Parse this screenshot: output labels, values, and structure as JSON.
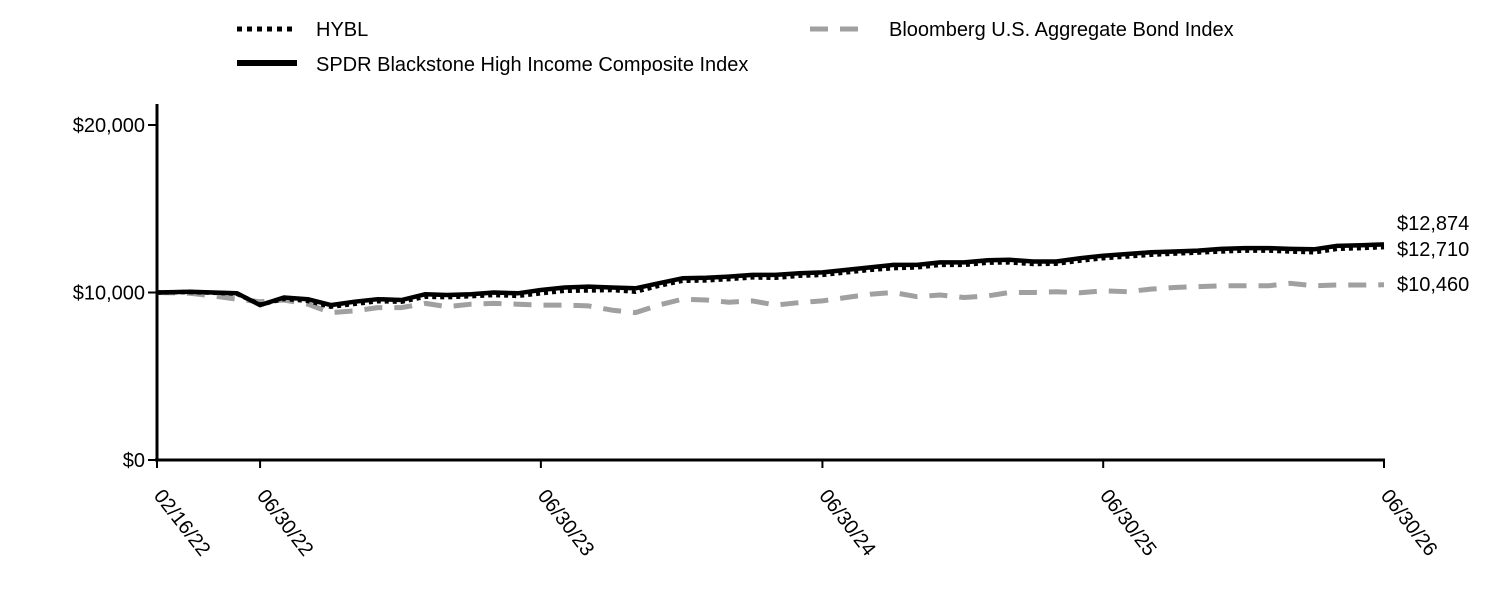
{
  "chart_data": {
    "type": "line",
    "xlim": [
      "02/16/22",
      "06/30/26"
    ],
    "x_ticks": [
      "02/16/22",
      "06/30/22",
      "06/30/23",
      "06/30/24",
      "06/30/25",
      "06/30/26"
    ],
    "y_ticks": [
      {
        "value": 0,
        "label": "$0"
      },
      {
        "value": 10000,
        "label": "$10,000"
      },
      {
        "value": 20000,
        "label": "$20,000"
      }
    ],
    "ylim": [
      0,
      20000
    ],
    "grid": false,
    "legend_position": "top",
    "series": [
      {
        "name": "HYBL",
        "style": "dotted",
        "color": "#000000",
        "end_label": "$12,710",
        "points": [
          [
            "2022-02-16",
            10000
          ],
          [
            "2022-03-31",
            10030
          ],
          [
            "2022-04-30",
            9990
          ],
          [
            "2022-05-31",
            9920
          ],
          [
            "2022-06-30",
            9280
          ],
          [
            "2022-07-31",
            9620
          ],
          [
            "2022-08-31",
            9500
          ],
          [
            "2022-09-30",
            9150
          ],
          [
            "2022-10-31",
            9320
          ],
          [
            "2022-11-30",
            9480
          ],
          [
            "2022-12-31",
            9450
          ],
          [
            "2023-01-31",
            9750
          ],
          [
            "2023-02-28",
            9720
          ],
          [
            "2023-03-31",
            9780
          ],
          [
            "2023-04-30",
            9850
          ],
          [
            "2023-05-31",
            9800
          ],
          [
            "2023-06-30",
            9950
          ],
          [
            "2023-07-31",
            10100
          ],
          [
            "2023-08-31",
            10120
          ],
          [
            "2023-09-30",
            10150
          ],
          [
            "2023-10-31",
            10050
          ],
          [
            "2023-11-30",
            10400
          ],
          [
            "2023-12-31",
            10700
          ],
          [
            "2024-01-31",
            10720
          ],
          [
            "2024-02-29",
            10800
          ],
          [
            "2024-03-31",
            10900
          ],
          [
            "2024-04-30",
            10880
          ],
          [
            "2024-05-31",
            11000
          ],
          [
            "2024-06-30",
            11050
          ],
          [
            "2024-07-31",
            11200
          ],
          [
            "2024-08-31",
            11350
          ],
          [
            "2024-09-30",
            11450
          ],
          [
            "2024-10-31",
            11500
          ],
          [
            "2024-11-30",
            11650
          ],
          [
            "2024-12-31",
            11650
          ],
          [
            "2025-01-31",
            11780
          ],
          [
            "2025-02-28",
            11800
          ],
          [
            "2025-03-31",
            11700
          ],
          [
            "2025-04-30",
            11720
          ],
          [
            "2025-05-31",
            11900
          ],
          [
            "2025-06-30",
            12050
          ],
          [
            "2025-07-31",
            12150
          ],
          [
            "2025-08-31",
            12250
          ],
          [
            "2025-09-30",
            12320
          ],
          [
            "2025-10-31",
            12380
          ],
          [
            "2025-11-30",
            12450
          ],
          [
            "2025-12-31",
            12500
          ],
          [
            "2026-01-31",
            12500
          ],
          [
            "2026-02-28",
            12450
          ],
          [
            "2026-03-31",
            12400
          ],
          [
            "2026-04-30",
            12600
          ],
          [
            "2026-05-31",
            12650
          ],
          [
            "2026-06-30",
            12710
          ]
        ]
      },
      {
        "name": "SPDR Blackstone High Income Composite Index",
        "style": "solid",
        "color": "#000000",
        "end_label": "$12,874",
        "points": [
          [
            "2022-02-16",
            10000
          ],
          [
            "2022-03-31",
            10050
          ],
          [
            "2022-04-30",
            10000
          ],
          [
            "2022-05-31",
            9950
          ],
          [
            "2022-06-30",
            9250
          ],
          [
            "2022-07-31",
            9700
          ],
          [
            "2022-08-31",
            9600
          ],
          [
            "2022-09-30",
            9250
          ],
          [
            "2022-10-31",
            9450
          ],
          [
            "2022-11-30",
            9600
          ],
          [
            "2022-12-31",
            9550
          ],
          [
            "2023-01-31",
            9900
          ],
          [
            "2023-02-28",
            9850
          ],
          [
            "2023-03-31",
            9900
          ],
          [
            "2023-04-30",
            10000
          ],
          [
            "2023-05-31",
            9950
          ],
          [
            "2023-06-30",
            10150
          ],
          [
            "2023-07-31",
            10300
          ],
          [
            "2023-08-31",
            10350
          ],
          [
            "2023-09-30",
            10300
          ],
          [
            "2023-10-31",
            10250
          ],
          [
            "2023-11-30",
            10550
          ],
          [
            "2023-12-31",
            10850
          ],
          [
            "2024-01-31",
            10880
          ],
          [
            "2024-02-29",
            10950
          ],
          [
            "2024-03-31",
            11050
          ],
          [
            "2024-04-30",
            11050
          ],
          [
            "2024-05-31",
            11150
          ],
          [
            "2024-06-30",
            11200
          ],
          [
            "2024-07-31",
            11350
          ],
          [
            "2024-08-31",
            11500
          ],
          [
            "2024-09-30",
            11650
          ],
          [
            "2024-10-31",
            11650
          ],
          [
            "2024-11-30",
            11800
          ],
          [
            "2024-12-31",
            11800
          ],
          [
            "2025-01-31",
            11920
          ],
          [
            "2025-02-28",
            11950
          ],
          [
            "2025-03-31",
            11850
          ],
          [
            "2025-04-30",
            11850
          ],
          [
            "2025-05-31",
            12050
          ],
          [
            "2025-06-30",
            12200
          ],
          [
            "2025-07-31",
            12300
          ],
          [
            "2025-08-31",
            12400
          ],
          [
            "2025-09-30",
            12450
          ],
          [
            "2025-10-31",
            12500
          ],
          [
            "2025-11-30",
            12600
          ],
          [
            "2025-12-31",
            12650
          ],
          [
            "2026-01-31",
            12650
          ],
          [
            "2026-02-28",
            12600
          ],
          [
            "2026-03-31",
            12580
          ],
          [
            "2026-04-30",
            12780
          ],
          [
            "2026-05-31",
            12820
          ],
          [
            "2026-06-30",
            12874
          ]
        ]
      },
      {
        "name": "Bloomberg U.S. Aggregate Bond Index",
        "style": "dashed",
        "color": "#a09fa1",
        "end_label": "$10,460",
        "points": [
          [
            "2022-02-16",
            10000
          ],
          [
            "2022-03-31",
            9950
          ],
          [
            "2022-04-30",
            9800
          ],
          [
            "2022-05-31",
            9600
          ],
          [
            "2022-06-30",
            9450
          ],
          [
            "2022-07-31",
            9550
          ],
          [
            "2022-08-31",
            9300
          ],
          [
            "2022-09-30",
            8800
          ],
          [
            "2022-10-31",
            8900
          ],
          [
            "2022-11-30",
            9100
          ],
          [
            "2022-12-31",
            9100
          ],
          [
            "2023-01-31",
            9350
          ],
          [
            "2023-02-28",
            9150
          ],
          [
            "2023-03-31",
            9300
          ],
          [
            "2023-04-30",
            9350
          ],
          [
            "2023-05-31",
            9300
          ],
          [
            "2023-06-30",
            9250
          ],
          [
            "2023-07-31",
            9250
          ],
          [
            "2023-08-31",
            9200
          ],
          [
            "2023-09-30",
            8950
          ],
          [
            "2023-10-31",
            8800
          ],
          [
            "2023-11-30",
            9250
          ],
          [
            "2023-12-31",
            9600
          ],
          [
            "2024-01-31",
            9550
          ],
          [
            "2024-02-29",
            9420
          ],
          [
            "2024-03-31",
            9500
          ],
          [
            "2024-04-30",
            9250
          ],
          [
            "2024-05-31",
            9400
          ],
          [
            "2024-06-30",
            9500
          ],
          [
            "2024-07-31",
            9700
          ],
          [
            "2024-08-31",
            9900
          ],
          [
            "2024-09-30",
            10000
          ],
          [
            "2024-10-31",
            9750
          ],
          [
            "2024-11-30",
            9850
          ],
          [
            "2024-12-31",
            9700
          ],
          [
            "2025-01-31",
            9800
          ],
          [
            "2025-02-28",
            10000
          ],
          [
            "2025-03-31",
            10000
          ],
          [
            "2025-04-30",
            10050
          ],
          [
            "2025-05-31",
            9980
          ],
          [
            "2025-06-30",
            10100
          ],
          [
            "2025-07-31",
            10050
          ],
          [
            "2025-08-31",
            10200
          ],
          [
            "2025-09-30",
            10300
          ],
          [
            "2025-10-31",
            10350
          ],
          [
            "2025-11-30",
            10400
          ],
          [
            "2025-12-31",
            10400
          ],
          [
            "2026-01-31",
            10400
          ],
          [
            "2026-02-28",
            10550
          ],
          [
            "2026-03-31",
            10400
          ],
          [
            "2026-04-30",
            10450
          ],
          [
            "2026-05-31",
            10450
          ],
          [
            "2026-06-30",
            10460
          ]
        ]
      }
    ]
  }
}
